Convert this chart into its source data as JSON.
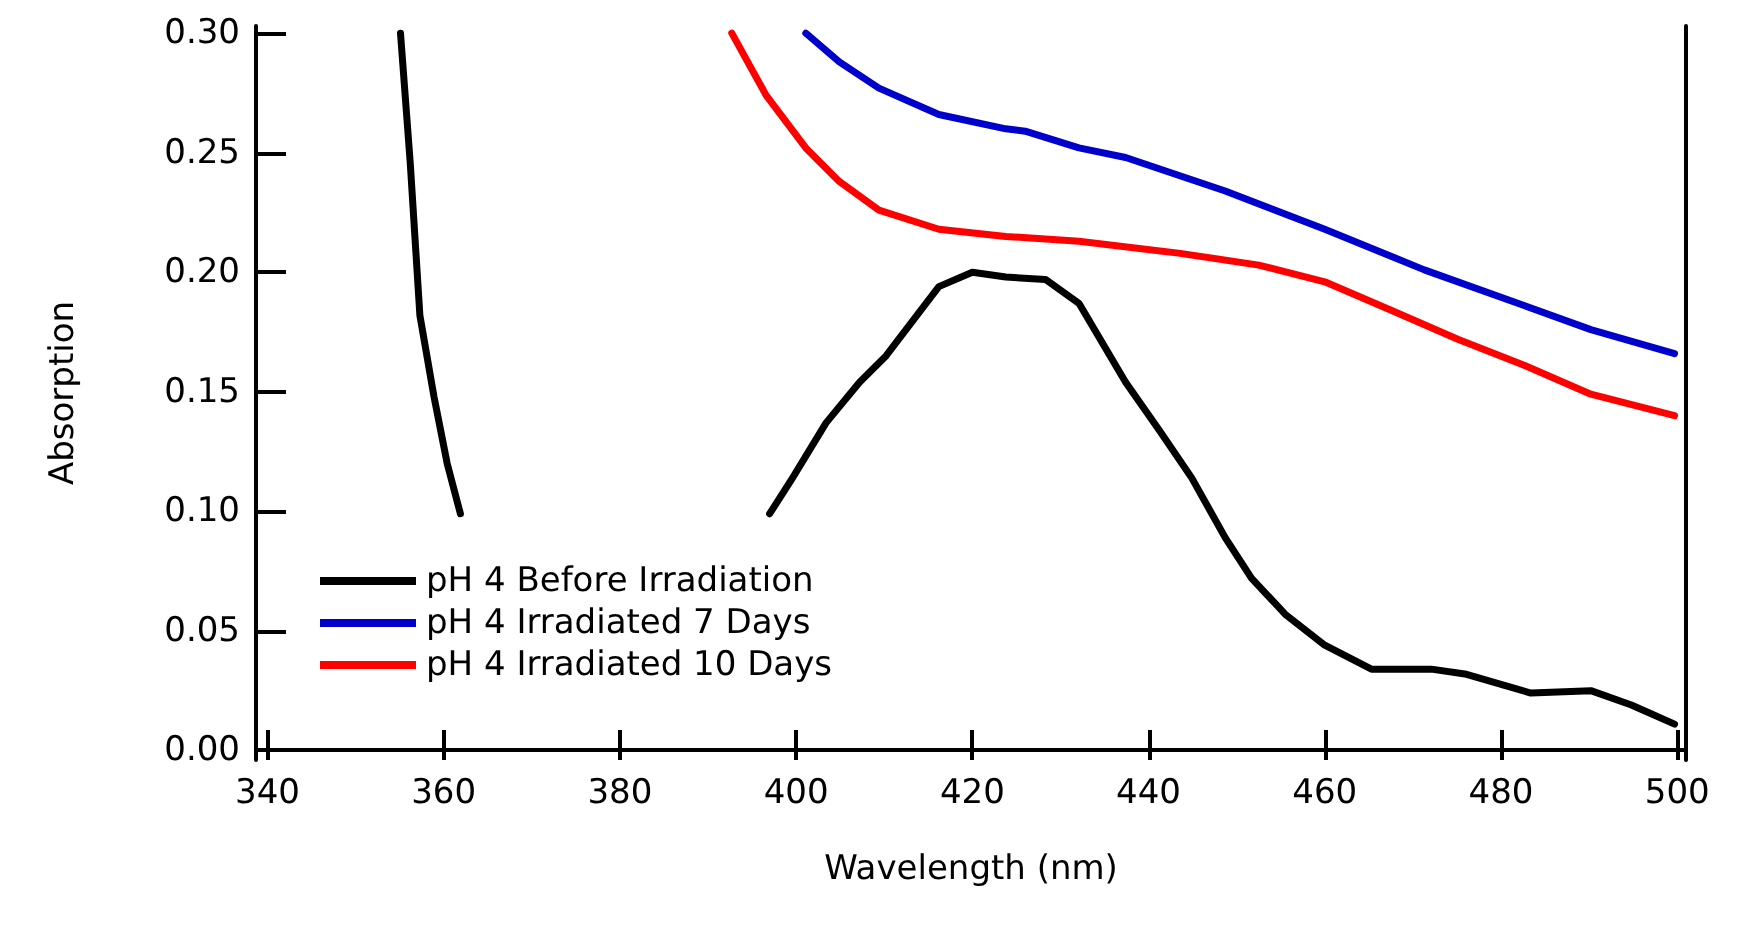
{
  "chart_data": {
    "type": "line",
    "xlabel": "Wavelength (nm)",
    "ylabel": "Absorption",
    "xlim": [
      338.7,
      501
    ],
    "ylim": [
      -0.004,
      0.303
    ],
    "xticks": [
      340,
      360,
      380,
      400,
      420,
      440,
      460,
      480,
      500
    ],
    "yticks": [
      {
        "value": 0,
        "label": "0.00"
      },
      {
        "value": 0.05,
        "label": "0.05"
      },
      {
        "value": 0.1,
        "label": "0.10"
      },
      {
        "value": 0.15,
        "label": "0.15"
      },
      {
        "value": 0.2,
        "label": "0.20"
      },
      {
        "value": 0.25,
        "label": "0.25"
      },
      {
        "value": 0.3,
        "label": "0.30"
      }
    ],
    "grid": false,
    "legend": "bottom left",
    "marker": "none",
    "line_style": "solid",
    "series": [
      {
        "name": "pH 4 Before Irradiation",
        "color": "#000000",
        "x": [
          355.1,
          356.2,
          357.3,
          358.9,
          360.4,
          361.9,
          380,
          397.0,
          399.6,
          403.4,
          407.2,
          410.2,
          416.2,
          420.0,
          423.8,
          428.3,
          432.1,
          437.4,
          441.2,
          444.9,
          448.7,
          451.7,
          455.5,
          460.0,
          465.3,
          472.1,
          475.9,
          483.4,
          490.2,
          494.8,
          499.7
        ],
        "values": [
          0.3,
          0.246,
          0.182,
          0.148,
          0.12,
          0.099,
          null,
          0.099,
          0.114,
          0.137,
          0.154,
          0.165,
          0.194,
          0.2,
          0.198,
          0.197,
          0.187,
          0.154,
          0.134,
          0.114,
          0.089,
          0.072,
          0.057,
          0.044,
          0.034,
          0.034,
          0.032,
          0.024,
          0.025,
          0.019,
          0.011
        ]
      },
      {
        "name": "pH 4 Irradiated 7 Days",
        "color": "#0000cc",
        "x": [
          401.1,
          404.9,
          409.4,
          416.2,
          423.8,
          426.0,
          432.1,
          437.4,
          448.7,
          460.0,
          471.3,
          482.7,
          490.2,
          499.7
        ],
        "values": [
          0.3,
          0.288,
          0.277,
          0.266,
          0.26,
          0.259,
          0.252,
          0.248,
          0.234,
          0.218,
          0.201,
          0.186,
          0.176,
          0.166
        ]
      },
      {
        "name": "pH 4 Irradiated 10 Days",
        "color": "#ff0000",
        "x": [
          392.7,
          396.6,
          401.1,
          404.9,
          409.4,
          416.2,
          423.8,
          432.1,
          443.4,
          452.5,
          460.0,
          467.6,
          475.1,
          482.7,
          490.2,
          499.7
        ],
        "values": [
          0.3,
          0.274,
          0.252,
          0.238,
          0.226,
          0.218,
          0.215,
          0.213,
          0.208,
          0.203,
          0.196,
          0.184,
          0.172,
          0.161,
          0.149,
          0.14
        ]
      }
    ]
  }
}
